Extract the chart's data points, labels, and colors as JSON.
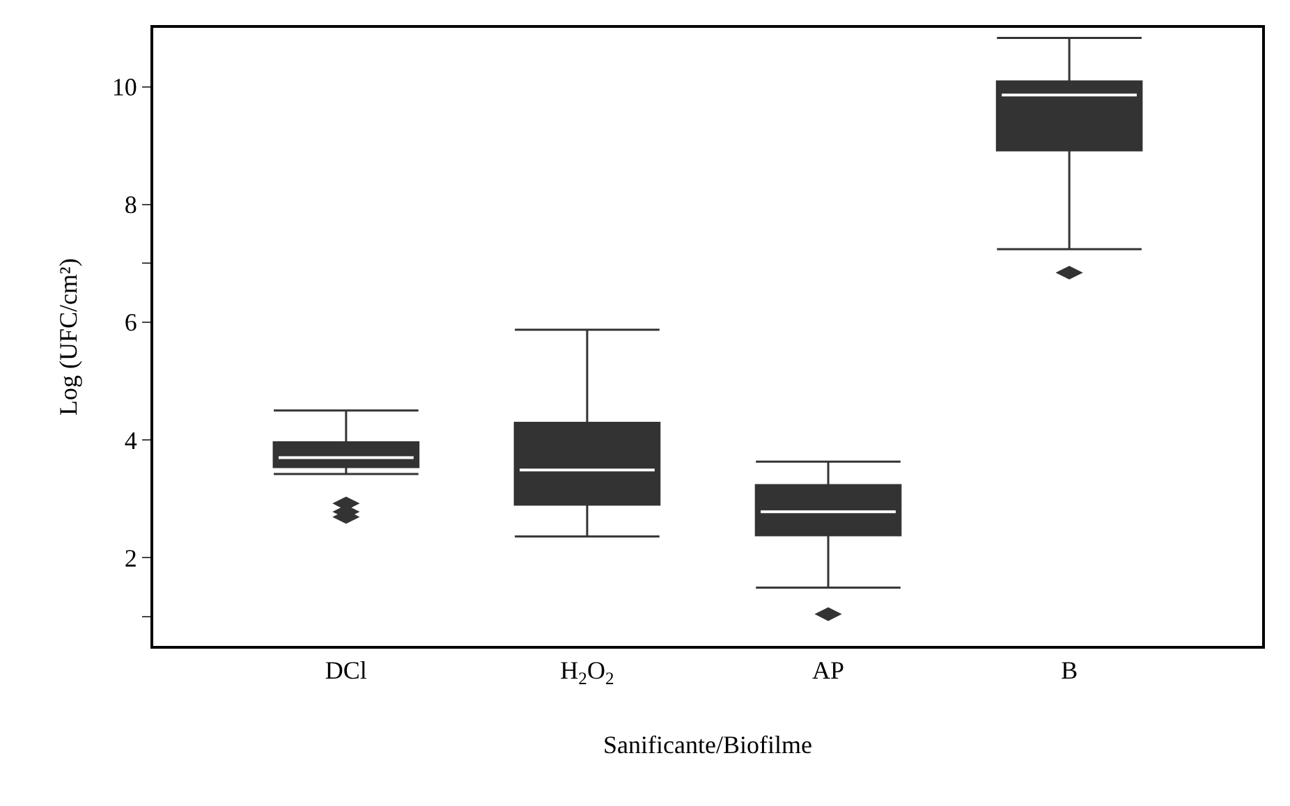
{
  "chart_data": {
    "type": "box",
    "categories": [
      "DCl",
      "H$_{2}$O$_{2}$",
      "AP",
      "B"
    ],
    "xlabel": "Sanificante/Biofilme",
    "ylabel": "Log (UFC/cm²)",
    "color": "#333333",
    "boxes": [
      {
        "low": 3.42,
        "q1": 3.54,
        "median": 3.7,
        "q3": 3.96,
        "high": 4.5,
        "outliers": [
          2.92,
          2.78,
          2.69
        ]
      },
      {
        "low": 2.36,
        "q1": 2.9,
        "median": 3.49,
        "q3": 4.29,
        "high": 5.87
      },
      {
        "low": 1.49,
        "q1": 2.38,
        "median": 2.78,
        "q3": 3.23,
        "high": 3.63,
        "outliers": [
          1.04
        ]
      },
      {
        "low": 7.24,
        "q1": 8.92,
        "median": 9.86,
        "q3": 10.09,
        "high": 10.83,
        "outliers": [
          6.84
        ]
      }
    ],
    "ylim": [
      0.5,
      11
    ],
    "yticks": [
      {
        "value": 1,
        "label": null
      },
      2,
      4,
      6,
      {
        "value": 7,
        "label": null
      },
      8,
      10
    ]
  }
}
